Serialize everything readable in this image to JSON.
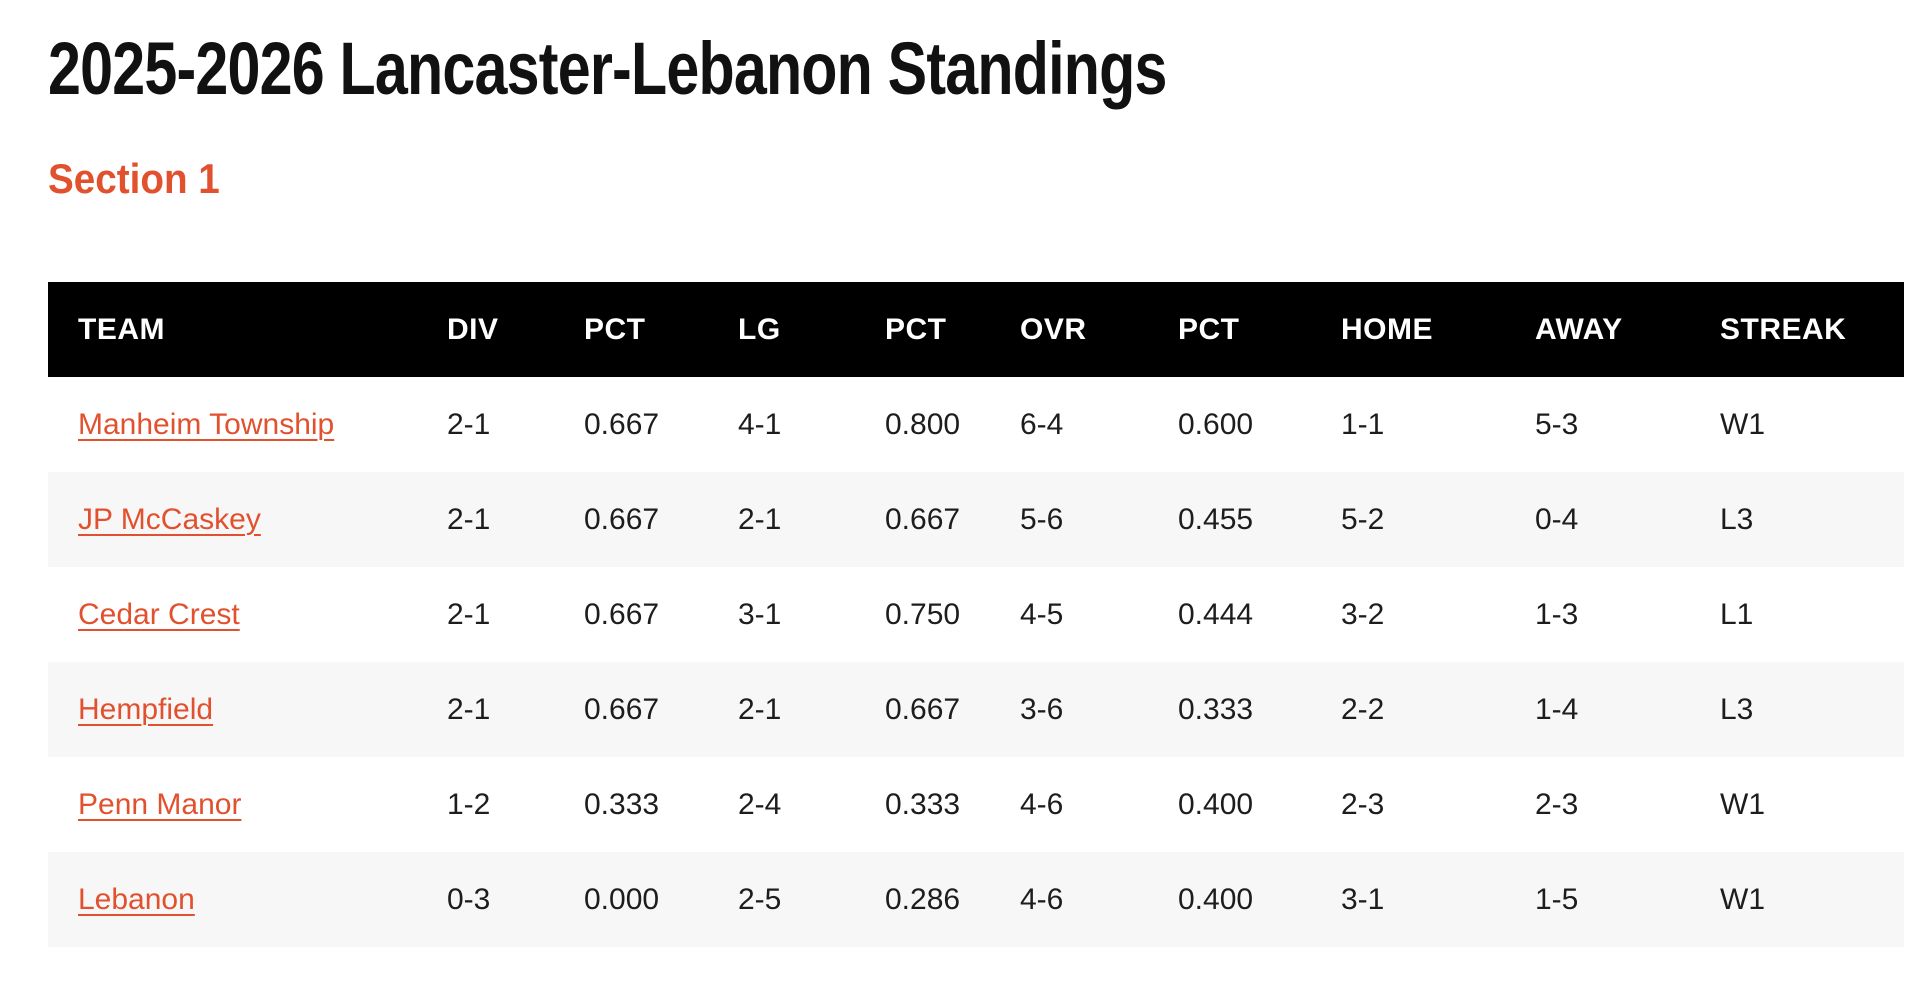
{
  "page": {
    "title": "2025-2026 Lancaster-Lebanon Standings",
    "section_heading": "Section 1"
  },
  "colors": {
    "accent_orange": "#e2512e",
    "header_bg": "#000000",
    "header_text": "#ffffff",
    "row_alt_bg": "#f7f7f7",
    "body_text": "#1d1d1d",
    "title_color": "#111111"
  },
  "standings_table": {
    "columns": [
      "TEAM",
      "DIV",
      "PCT",
      "LG",
      "PCT",
      "OVR",
      "PCT",
      "HOME",
      "AWAY",
      "STREAK"
    ],
    "rows": [
      {
        "team": "Manheim Township",
        "stats": [
          "2-1",
          "0.667",
          "4-1",
          "0.800",
          "6-4",
          "0.600",
          "1-1",
          "5-3",
          "W1"
        ]
      },
      {
        "team": "JP McCaskey",
        "stats": [
          "2-1",
          "0.667",
          "2-1",
          "0.667",
          "5-6",
          "0.455",
          "5-2",
          "0-4",
          "L3"
        ]
      },
      {
        "team": "Cedar Crest",
        "stats": [
          "2-1",
          "0.667",
          "3-1",
          "0.750",
          "4-5",
          "0.444",
          "3-2",
          "1-3",
          "L1"
        ]
      },
      {
        "team": "Hempfield",
        "stats": [
          "2-1",
          "0.667",
          "2-1",
          "0.667",
          "3-6",
          "0.333",
          "2-2",
          "1-4",
          "L3"
        ]
      },
      {
        "team": "Penn Manor",
        "stats": [
          "1-2",
          "0.333",
          "2-4",
          "0.333",
          "4-6",
          "0.400",
          "2-3",
          "2-3",
          "W1"
        ]
      },
      {
        "team": "Lebanon",
        "stats": [
          "0-3",
          "0.000",
          "2-5",
          "0.286",
          "4-6",
          "0.400",
          "3-1",
          "1-5",
          "W1"
        ]
      }
    ]
  }
}
